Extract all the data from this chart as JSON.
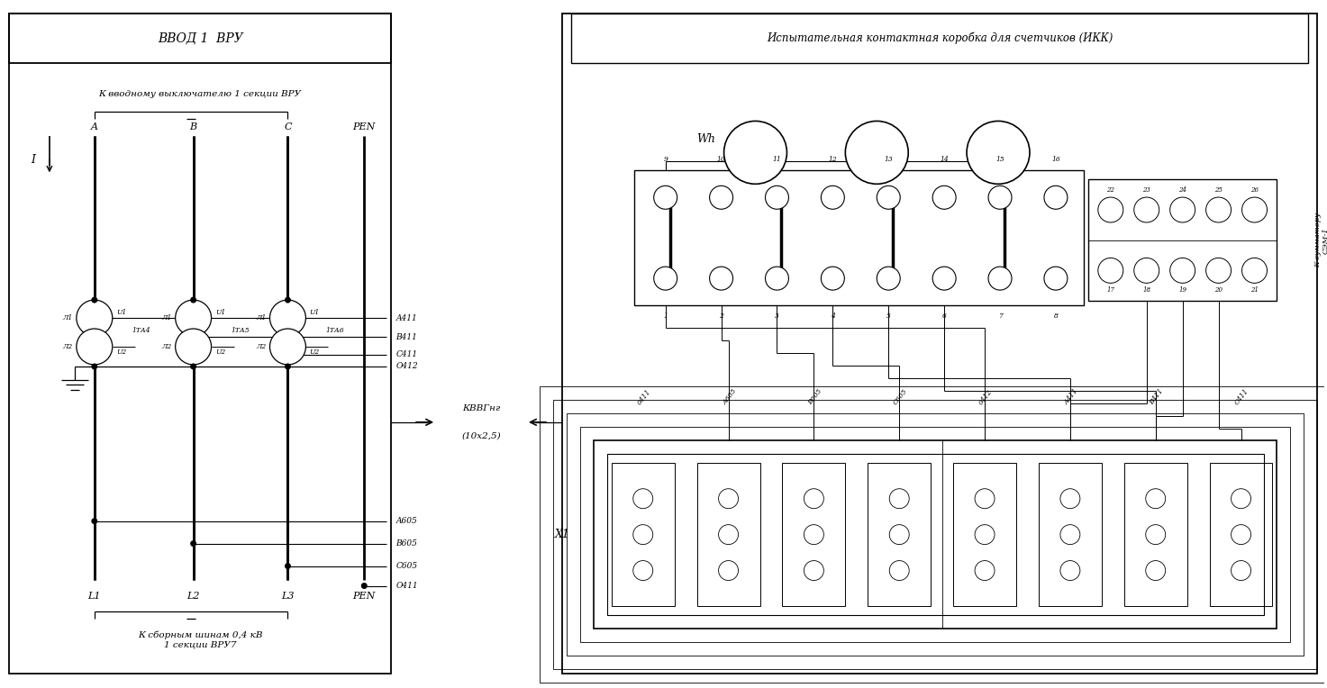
{
  "bg": "#ffffff",
  "fg": "#000000",
  "title_left": "ВВОД 1  ВРУ",
  "title_right": "Испытательная контактная коробка для счетчиков (ИКК)",
  "label_top": "К вводному выключателю 1 секции ВРУ",
  "label_bottom": "К сборным шинам 0,4 кВ\n1 секции ВРУ7",
  "phases_top": [
    "A",
    "B",
    "C",
    "PEN"
  ],
  "phases_bot": [
    "L1",
    "L2",
    "L3",
    "PEN"
  ],
  "ta_names": [
    "1ТА4",
    "1ТА5",
    "1ТА6"
  ],
  "wire_tags": [
    "A411",
    "B411",
    "C411",
    "O412",
    "A605",
    "B605",
    "C605",
    "O411"
  ],
  "cable_line1": "КВВГнг",
  "cable_line2": "(10х2,5)",
  "wh_label": "Wh",
  "conn_top": [
    "9",
    "10",
    "11",
    "12",
    "13",
    "14",
    "15",
    "16"
  ],
  "conn_bot": [
    "1",
    "2",
    "3",
    "4",
    "5",
    "6",
    "7",
    "8"
  ],
  "sum_top": [
    "22",
    "23",
    "24",
    "25",
    "26"
  ],
  "sum_bot": [
    "17",
    "18",
    "19",
    "20",
    "21"
  ],
  "x1_label": "Х1",
  "x1_tags": [
    "0411",
    "А605",
    "В605",
    "С605",
    "0412",
    "А411",
    "В411",
    "С411"
  ],
  "summ_label": "К сумматору\nСЭМ-1"
}
